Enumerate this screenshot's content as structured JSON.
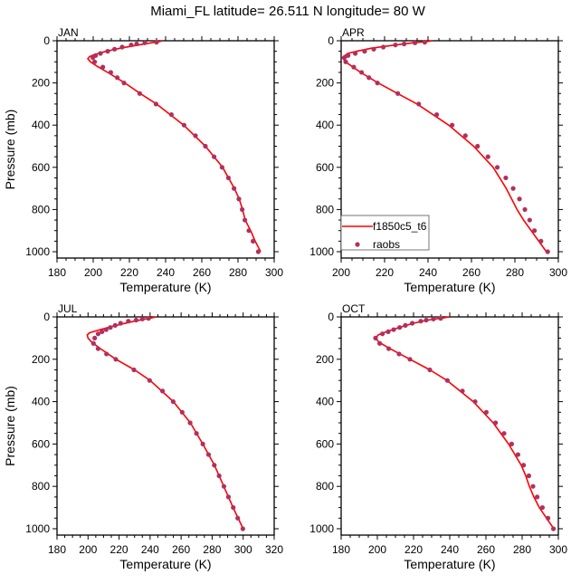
{
  "chart_data": {
    "type": "line",
    "title": "Miami_FL  latitude= 26.511 N longitude= 80 W",
    "ylabel": "Pressure (mb)",
    "xlabel": "Temperature (K)",
    "legend": {
      "placement": "bottom-left of APR panel",
      "entries": [
        "f1850c5_t6",
        "raobs"
      ]
    },
    "colors": {
      "model": "#ff0000",
      "obs": "#b03060"
    },
    "obs_pressure": [
      1000,
      950,
      900,
      850,
      800,
      750,
      700,
      650,
      600,
      550,
      500,
      450,
      400,
      350,
      300,
      250,
      200,
      175,
      150,
      125,
      100,
      80,
      70,
      60,
      50,
      40,
      30,
      20,
      15,
      10,
      7
    ],
    "panels": [
      {
        "label": "JAN",
        "xlim": [
          180,
          300
        ],
        "xticks": [
          180,
          200,
          220,
          240,
          260,
          280,
          300
        ],
        "ylim": [
          0,
          1030
        ],
        "yticks": [
          0,
          200,
          400,
          600,
          800,
          1000
        ],
        "obs": [
          291.2,
          288.3,
          286,
          283.8,
          282.3,
          280.5,
          277.8,
          274.7,
          271.2,
          266.8,
          262,
          256.5,
          250.2,
          243.2,
          234.7,
          225.7,
          217,
          213.3,
          209.7,
          205.3,
          200.8,
          199.8,
          201.3,
          204,
          208,
          211.8,
          216,
          221,
          224,
          228.5,
          235
        ],
        "model": [
          [
            1000,
            292.5
          ],
          [
            950,
            289.5
          ],
          [
            900,
            287
          ],
          [
            850,
            284
          ],
          [
            800,
            282.5
          ],
          [
            750,
            280.7
          ],
          [
            700,
            278
          ],
          [
            600,
            271.5
          ],
          [
            500,
            262
          ],
          [
            400,
            250
          ],
          [
            300,
            235
          ],
          [
            250,
            226
          ],
          [
            200,
            217.5
          ],
          [
            150,
            208
          ],
          [
            120,
            202
          ],
          [
            100,
            198.5
          ],
          [
            85,
            197
          ],
          [
            75,
            198
          ],
          [
            65,
            201
          ],
          [
            50,
            207
          ],
          [
            35,
            215
          ],
          [
            20,
            225
          ],
          [
            10,
            232
          ],
          [
            3,
            237
          ],
          [
            0,
            238
          ]
        ]
      },
      {
        "label": "APR",
        "xlim": [
          200,
          300
        ],
        "xticks": [
          200,
          220,
          240,
          260,
          280,
          300
        ],
        "ylim": [
          0,
          1030
        ],
        "yticks": [
          0,
          200,
          400,
          600,
          800,
          1000
        ],
        "obs": [
          295.1,
          292,
          289,
          286.8,
          284.6,
          282.1,
          279.2,
          275.8,
          271.9,
          267.6,
          262.8,
          257.2,
          251.1,
          244,
          235.7,
          226.1,
          216.7,
          212.8,
          209.4,
          205.8,
          202.1,
          201.5,
          203.2,
          206.5,
          210.8,
          215,
          219.4,
          225,
          229,
          234,
          238.5
        ],
        "model": [
          [
            1000,
            294.5
          ],
          [
            950,
            291
          ],
          [
            900,
            287.5
          ],
          [
            850,
            284
          ],
          [
            800,
            281
          ],
          [
            750,
            278.5
          ],
          [
            700,
            276
          ],
          [
            600,
            270
          ],
          [
            500,
            261
          ],
          [
            400,
            249.5
          ],
          [
            300,
            235
          ],
          [
            250,
            226
          ],
          [
            200,
            217
          ],
          [
            150,
            209
          ],
          [
            100,
            202
          ],
          [
            80,
            200.5
          ],
          [
            60,
            203
          ],
          [
            50,
            207
          ],
          [
            35,
            214
          ],
          [
            20,
            225
          ],
          [
            10,
            233
          ],
          [
            3,
            240
          ],
          [
            0,
            242
          ]
        ]
      },
      {
        "label": "JUL",
        "xlim": [
          180,
          320
        ],
        "xticks": [
          180,
          200,
          220,
          240,
          260,
          280,
          300,
          320
        ],
        "ylim": [
          0,
          1030
        ],
        "yticks": [
          0,
          200,
          400,
          600,
          800,
          1000
        ],
        "obs": [
          299.8,
          296.5,
          293.6,
          290.5,
          287.6,
          284.5,
          281.4,
          277.7,
          274,
          269.9,
          265.8,
          260.7,
          254.9,
          248,
          239.7,
          229.6,
          217.9,
          211.9,
          206.5,
          203.5,
          204.3,
          206.5,
          209,
          211.7,
          214.4,
          217.5,
          221,
          226,
          231,
          235,
          239
        ],
        "model": [
          [
            1000,
            300
          ],
          [
            900,
            293.5
          ],
          [
            800,
            287.5
          ],
          [
            700,
            281.5
          ],
          [
            600,
            274
          ],
          [
            500,
            266
          ],
          [
            400,
            255
          ],
          [
            300,
            240
          ],
          [
            250,
            230
          ],
          [
            200,
            218
          ],
          [
            150,
            208
          ],
          [
            120,
            202.5
          ],
          [
            100,
            200
          ],
          [
            85,
            199.5
          ],
          [
            75,
            201
          ],
          [
            60,
            208
          ],
          [
            50,
            213
          ],
          [
            35,
            221
          ],
          [
            20,
            230
          ],
          [
            10,
            237
          ],
          [
            3,
            242
          ],
          [
            0,
            244
          ]
        ]
      },
      {
        "label": "OCT",
        "xlim": [
          180,
          300
        ],
        "xticks": [
          180,
          200,
          220,
          240,
          260,
          280,
          300
        ],
        "ylim": [
          0,
          1030
        ],
        "yticks": [
          0,
          200,
          400,
          600,
          800,
          1000
        ],
        "obs": [
          297.3,
          294.3,
          291.2,
          288.3,
          286,
          283.7,
          280.8,
          277.7,
          274.2,
          270,
          265.3,
          260.2,
          254,
          247,
          238.7,
          229,
          218,
          212,
          206.3,
          201.3,
          199,
          202.8,
          206,
          209,
          212.3,
          215.5,
          219.3,
          224,
          227,
          231,
          235
        ],
        "model": [
          [
            1000,
            297.5
          ],
          [
            950,
            293.5
          ],
          [
            900,
            289.5
          ],
          [
            850,
            286.5
          ],
          [
            800,
            284
          ],
          [
            750,
            282
          ],
          [
            700,
            279.5
          ],
          [
            600,
            272.5
          ],
          [
            500,
            264
          ],
          [
            400,
            253
          ],
          [
            300,
            238.5
          ],
          [
            250,
            229
          ],
          [
            200,
            218
          ],
          [
            150,
            207
          ],
          [
            120,
            201
          ],
          [
            100,
            199
          ],
          [
            85,
            200.5
          ],
          [
            70,
            205
          ],
          [
            50,
            212
          ],
          [
            30,
            220
          ],
          [
            15,
            228
          ],
          [
            5,
            236
          ],
          [
            0,
            240
          ]
        ]
      }
    ]
  }
}
